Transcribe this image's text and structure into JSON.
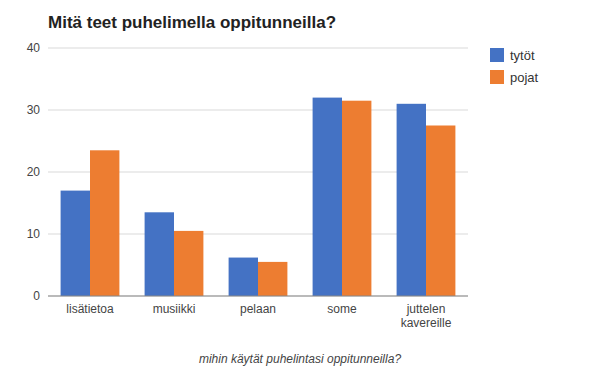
{
  "chart_data": {
    "type": "bar",
    "title": "Mitä teet puhelimella oppitunneilla?",
    "xlabel": "mihin käytät puhelintasi oppitunneilla?",
    "categories": [
      "lisätietoa",
      "musiikki",
      "pelaan",
      "some",
      "juttelen\nkavereille"
    ],
    "series": [
      {
        "name": "tytöt",
        "color": "#4472C4",
        "values": [
          17,
          13.5,
          6.2,
          32,
          31
        ]
      },
      {
        "name": "pojat",
        "color": "#ED7D31",
        "values": [
          23.5,
          10.5,
          5.5,
          31.5,
          27.5
        ]
      }
    ],
    "ylim": [
      0,
      40
    ],
    "yticks": [
      0,
      10,
      20,
      30,
      40
    ],
    "grid": true,
    "legend": "upper right"
  }
}
